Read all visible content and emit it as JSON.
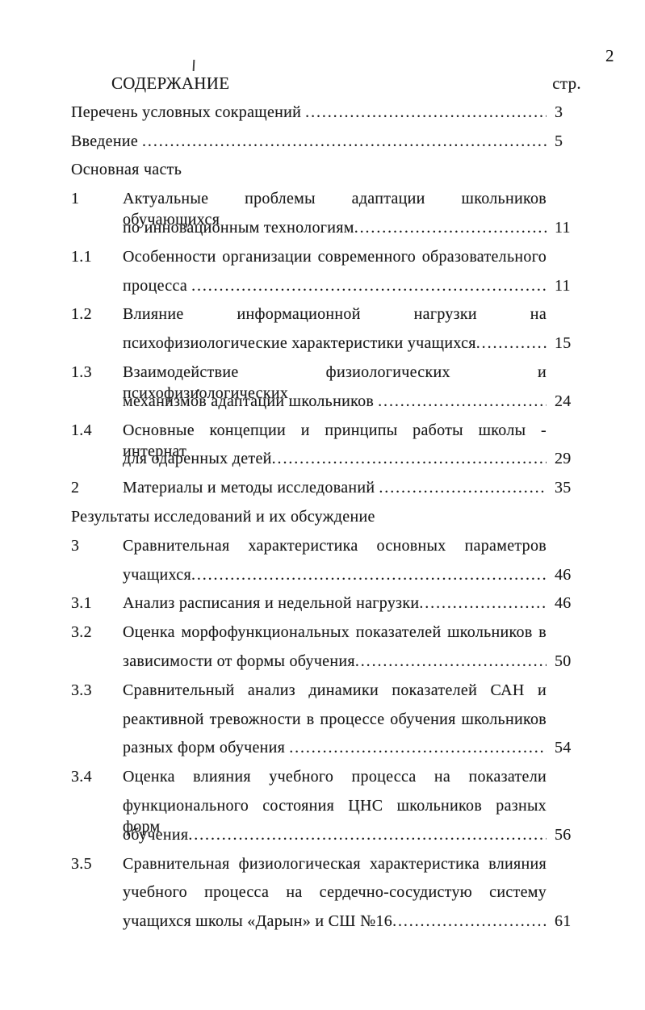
{
  "document": {
    "page_number": "2",
    "toc": {
      "heading": "СОДЕРЖАНИЕ",
      "page_column_label": "стр.",
      "entries": [
        {
          "num": null,
          "flush": true,
          "text": "Перечень условных сокращений ",
          "dots": true,
          "justify": false,
          "page": "3"
        },
        {
          "num": null,
          "flush": true,
          "text": "Введение ",
          "dots": true,
          "justify": false,
          "page": "5"
        },
        {
          "num": null,
          "flush": true,
          "text": "Основная часть",
          "dots": false,
          "justify": false,
          "page": null
        },
        {
          "num": "1",
          "flush": false,
          "text": "Актуальные проблемы адаптации школьников обучающихся",
          "dots": false,
          "justify": true,
          "page": null
        },
        {
          "num": "",
          "flush": false,
          "text": "по инновационным технологиям",
          "dots": true,
          "justify": false,
          "page": "11"
        },
        {
          "num": "1.1",
          "flush": false,
          "text": "Особенности организации современного образовательного",
          "dots": false,
          "justify": true,
          "page": null
        },
        {
          "num": "",
          "flush": false,
          "text": "процесса ",
          "dots": true,
          "justify": false,
          "page": "11"
        },
        {
          "num": "1.2",
          "flush": false,
          "text": "Влияние информационной нагрузки на",
          "dots": false,
          "justify": true,
          "page": null
        },
        {
          "num": "",
          "flush": false,
          "text": "психофизиологические характеристики учащихся",
          "dots": true,
          "justify": false,
          "page": "15"
        },
        {
          "num": "1.3",
          "flush": false,
          "text": "Взаимодействие физиологических и психофизиологических",
          "dots": false,
          "justify": true,
          "page": null
        },
        {
          "num": "",
          "flush": false,
          "text": "механизмов адаптации школьников ",
          "dots": true,
          "justify": false,
          "page": "24"
        },
        {
          "num": "1.4",
          "flush": false,
          "text": "Основные концепции и принципы работы школы - интернат",
          "dots": false,
          "justify": true,
          "page": null
        },
        {
          "num": "",
          "flush": false,
          "text": "для одаренных детей",
          "dots": true,
          "justify": false,
          "page": "29"
        },
        {
          "num": "2",
          "flush": false,
          "text": "Материалы и методы исследований ",
          "dots": true,
          "justify": false,
          "page": "35"
        },
        {
          "num": null,
          "flush": true,
          "text": "Результаты исследований и их обсуждение",
          "dots": false,
          "justify": false,
          "page": null
        },
        {
          "num": "3",
          "flush": false,
          "text": "Сравнительная характеристика основных параметров",
          "dots": false,
          "justify": true,
          "page": null
        },
        {
          "num": "",
          "flush": false,
          "text": "учащихся",
          "dots": true,
          "justify": false,
          "page": "46"
        },
        {
          "num": "3.1",
          "flush": false,
          "text": "Анализ расписания и недельной нагрузки",
          "dots": true,
          "justify": false,
          "page": "46"
        },
        {
          "num": "3.2",
          "flush": false,
          "text": "Оценка морфофункциональных показателей школьников в",
          "dots": false,
          "justify": true,
          "page": null
        },
        {
          "num": "",
          "flush": false,
          "text": "зависимости от формы обучения",
          "dots": true,
          "justify": false,
          "page": "50"
        },
        {
          "num": "3.3",
          "flush": false,
          "text": "Сравнительный анализ динамики показателей САН и",
          "dots": false,
          "justify": true,
          "page": null
        },
        {
          "num": "",
          "flush": false,
          "text": "реактивной тревожности в процессе обучения школьников",
          "dots": false,
          "justify": true,
          "page": null
        },
        {
          "num": "",
          "flush": false,
          "text": "разных форм обучения ",
          "dots": true,
          "justify": false,
          "page": "54"
        },
        {
          "num": "3.4",
          "flush": false,
          "text": "Оценка влияния учебного процесса на показатели",
          "dots": false,
          "justify": true,
          "page": null
        },
        {
          "num": "",
          "flush": false,
          "text": "функционального состояния ЦНС школьников разных форм",
          "dots": false,
          "justify": true,
          "page": null
        },
        {
          "num": "",
          "flush": false,
          "text": "обучения",
          "dots": true,
          "justify": false,
          "page": "56"
        },
        {
          "num": "3.5",
          "flush": false,
          "text": "Сравнительная физиологическая характеристика влияния",
          "dots": false,
          "justify": true,
          "page": null
        },
        {
          "num": "",
          "flush": false,
          "text": "учебного процесса на сердечно-сосудистую систему",
          "dots": false,
          "justify": true,
          "page": null
        },
        {
          "num": "",
          "flush": false,
          "text": "учащихся школы «Дарын» и СШ №16",
          "dots": true,
          "justify": false,
          "page": "61"
        }
      ]
    }
  }
}
